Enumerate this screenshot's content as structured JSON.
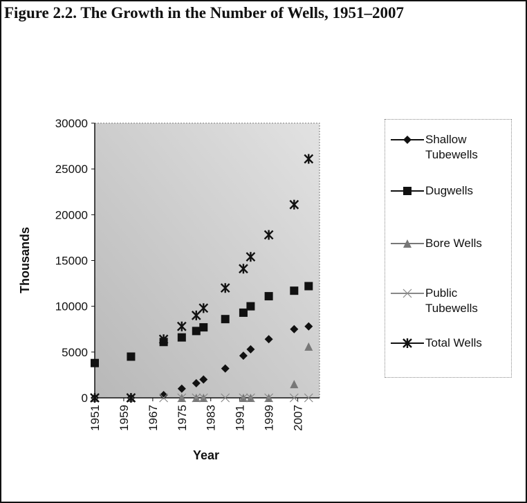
{
  "chart_data": {
    "type": "scatter",
    "title": "Figure 2.2.  The Growth in the Number of Wells, 1951–2007",
    "x_label": "Year",
    "y_label": "Thousands",
    "x": [
      1951,
      1961,
      1970,
      1975,
      1979,
      1981,
      1987,
      1992,
      1994,
      1999,
      2006,
      2010
    ],
    "series": [
      {
        "name": "Shallow Tubewells",
        "color": "#111111",
        "marker": "diamond",
        "values": [
          0,
          0,
          300,
          1000,
          1600,
          2000,
          3200,
          4600,
          5300,
          6400,
          7500,
          7800
        ]
      },
      {
        "name": "Dugwells",
        "color": "#111111",
        "marker": "square",
        "values": [
          3800,
          4500,
          6100,
          6600,
          7300,
          7700,
          8600,
          9300,
          10000,
          11100,
          11700,
          12200
        ]
      },
      {
        "name": "Bore Wells",
        "color": "#777777",
        "marker": "triangle",
        "values": [
          0,
          0,
          null,
          0,
          0,
          0,
          null,
          0,
          0,
          0,
          1500,
          5600
        ]
      },
      {
        "name": "Public Tubewells",
        "color": "#888888",
        "marker": "cross",
        "values": [
          0,
          0,
          0,
          0,
          0,
          0,
          0,
          0,
          0,
          0,
          0,
          0
        ]
      },
      {
        "name": "Total Wells",
        "color": "#111111",
        "marker": "asterisk",
        "values": [
          0,
          0,
          6400,
          7800,
          9000,
          9800,
          12000,
          14100,
          15400,
          17800,
          21100,
          26100
        ]
      }
    ],
    "xlim": [
      1951,
      2013
    ],
    "xticks": [
      1951,
      1959,
      1967,
      1975,
      1983,
      1991,
      1999,
      2007
    ],
    "ylim": [
      0,
      30000
    ],
    "yticks": [
      0,
      5000,
      10000,
      15000,
      20000,
      25000,
      30000
    ]
  }
}
